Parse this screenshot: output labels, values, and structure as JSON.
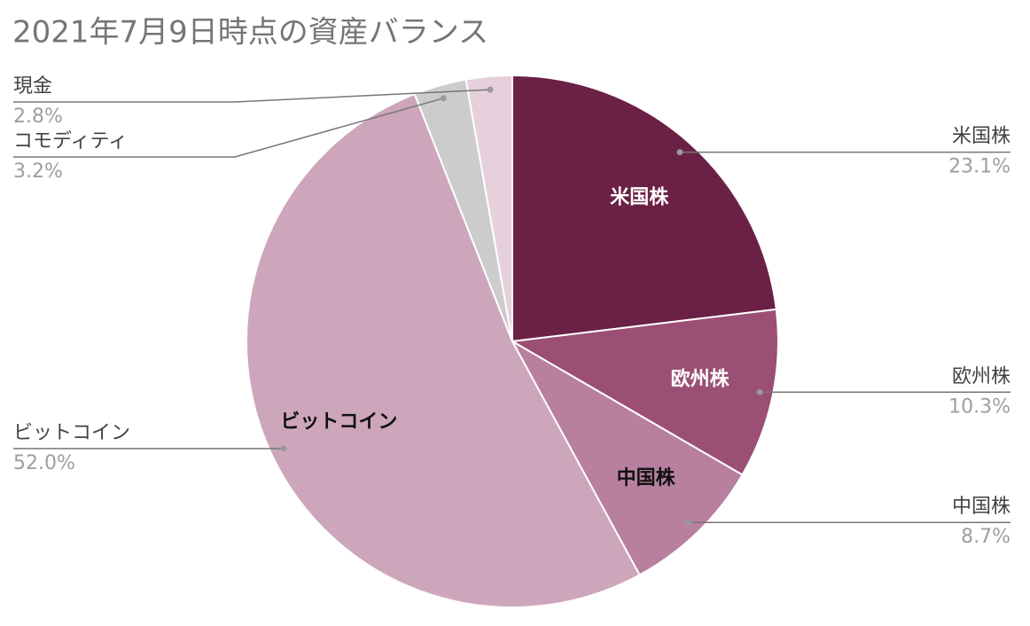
{
  "chart_data": {
    "type": "pie",
    "title": "2021年7月9日時点の資産バランス",
    "categories": [
      "米国株",
      "欧州株",
      "中国株",
      "ビットコイン",
      "コモディティ",
      "現金"
    ],
    "values": [
      23.1,
      10.3,
      8.7,
      52.0,
      3.2,
      2.8
    ],
    "value_labels": [
      "23.1%",
      "10.3%",
      "8.7%",
      "52.0%",
      "3.2%",
      "2.8%"
    ],
    "colors": [
      "#6b2045",
      "#9b4f75",
      "#b87f9f",
      "#cda6bb",
      "#cccccc",
      "#e6d0dc"
    ]
  }
}
